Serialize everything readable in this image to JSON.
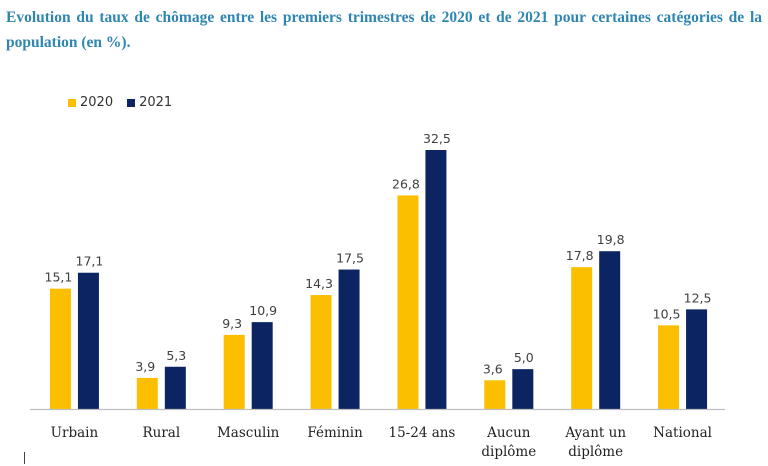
{
  "chart_data": {
    "type": "bar",
    "title": "Evolution du taux de chômage entre les premiers trimestres de 2020 et de 2021 pour certaines catégories de la population (en %).",
    "xlabel": "",
    "ylabel": "",
    "ylim": [
      0,
      32.5
    ],
    "grid": false,
    "legend_position": "top-left",
    "categories": [
      "Urbain",
      "Rural",
      "Masculin",
      "Féminin",
      "15-24 ans",
      "Aucun diplôme",
      "Ayant un diplôme",
      "National"
    ],
    "category_lines": [
      [
        "Urbain"
      ],
      [
        "Rural"
      ],
      [
        "Masculin"
      ],
      [
        "Féminin"
      ],
      [
        "15-24 ans"
      ],
      [
        "Aucun",
        "diplôme"
      ],
      [
        "Ayant un",
        "diplôme"
      ],
      [
        "National"
      ]
    ],
    "series": [
      {
        "name": "2020",
        "color": "#fbbf00",
        "values": [
          15.1,
          3.9,
          9.3,
          14.3,
          26.8,
          3.6,
          17.8,
          10.5
        ],
        "labels": [
          "15,1",
          "3,9",
          "9,3",
          "14,3",
          "26,8",
          "3,6",
          "17,8",
          "10,5"
        ]
      },
      {
        "name": "2021",
        "color": "#0c2461",
        "values": [
          17.1,
          5.3,
          10.9,
          17.5,
          32.5,
          5.0,
          19.8,
          12.5
        ],
        "labels": [
          "17,1",
          "5,3",
          "10,9",
          "17,5",
          "32,5",
          "5,0",
          "19,8",
          "12,5"
        ]
      }
    ]
  },
  "legend": {
    "items": [
      {
        "label": "2020",
        "color": "#fbbf00"
      },
      {
        "label": "2021",
        "color": "#0c2461"
      }
    ]
  }
}
